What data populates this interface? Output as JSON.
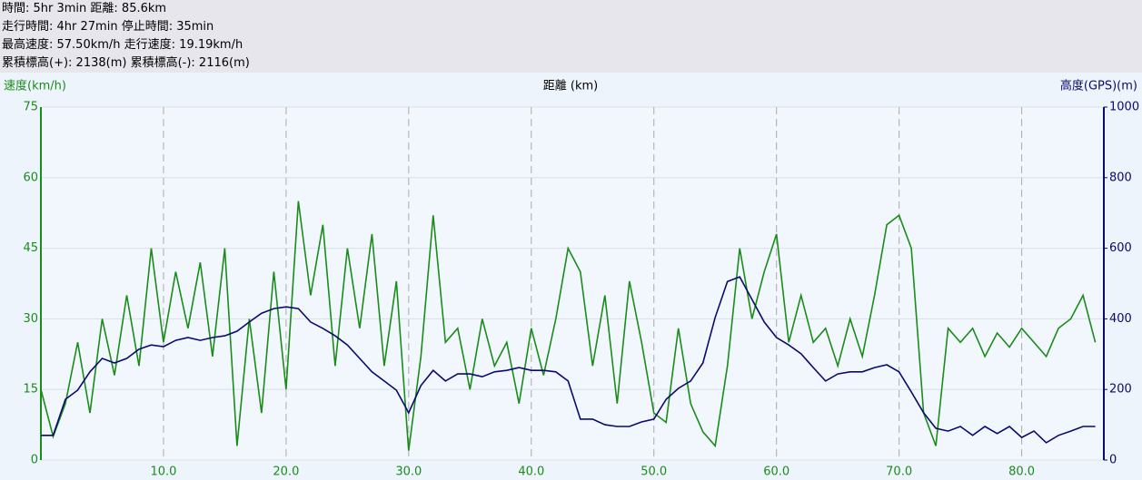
{
  "header": {
    "lines": [
      "時間: 5hr 3min 距離: 85.6km",
      "走行時間: 4hr 27min 停止時間: 35min",
      "最高速度: 57.50km/h 走行速度: 19.19km/h",
      "累積標高(+): 2138(m) 累積標高(-): 2116(m)"
    ]
  },
  "chart_data": {
    "type": "line",
    "x_label": "距離 (km)",
    "y_label": "速度(km/h)",
    "y2_label": "高度(GPS)(m)",
    "xlim": [
      0,
      86.7
    ],
    "xticks": [
      {
        "value": 10,
        "label": "10.0"
      },
      {
        "value": 20,
        "label": "20.0"
      },
      {
        "value": 30,
        "label": "30.0"
      },
      {
        "value": 40,
        "label": "40.0"
      },
      {
        "value": 50,
        "label": "50.0"
      },
      {
        "value": 60,
        "label": "60.0"
      },
      {
        "value": 70,
        "label": "70.0"
      },
      {
        "value": 80,
        "label": "80.0"
      }
    ],
    "ylim": [
      0,
      75
    ],
    "yticks": [
      0,
      15,
      30,
      45,
      60,
      75
    ],
    "y2lim": [
      0,
      1000
    ],
    "y2ticks": [
      0,
      200,
      400,
      600,
      800,
      1000
    ],
    "grid": true,
    "x": [
      0,
      1,
      2,
      3,
      4,
      5,
      6,
      7,
      8,
      9,
      10,
      11,
      12,
      13,
      14,
      15,
      16,
      17,
      18,
      19,
      20,
      21,
      22,
      23,
      24,
      25,
      26,
      27,
      28,
      29,
      30,
      31,
      32,
      33,
      34,
      35,
      36,
      37,
      38,
      39,
      40,
      41,
      42,
      43,
      44,
      45,
      46,
      47,
      48,
      49,
      50,
      51,
      52,
      53,
      54,
      55,
      56,
      57,
      58,
      59,
      60,
      61,
      62,
      63,
      64,
      65,
      66,
      67,
      68,
      69,
      70,
      71,
      72,
      73,
      74,
      75,
      76,
      77,
      78,
      79,
      80,
      81,
      82,
      83,
      84,
      85,
      86
    ],
    "series": [
      {
        "name": "速度",
        "color": "#1a8c1a",
        "values": [
          15,
          5,
          12,
          25,
          10,
          30,
          18,
          35,
          20,
          45,
          25,
          40,
          28,
          42,
          22,
          45,
          3,
          30,
          10,
          40,
          15,
          55,
          35,
          50,
          20,
          45,
          28,
          48,
          20,
          38,
          2,
          22,
          52,
          25,
          28,
          15,
          30,
          20,
          25,
          12,
          28,
          18,
          30,
          45,
          40,
          20,
          35,
          12,
          38,
          25,
          10,
          8,
          28,
          12,
          6,
          3,
          20,
          45,
          30,
          40,
          48,
          25,
          35,
          25,
          28,
          20,
          30,
          22,
          35,
          50,
          52,
          45,
          10,
          3,
          28,
          25,
          28,
          22,
          27,
          24,
          28,
          25,
          22,
          28,
          30,
          35,
          25
        ]
      },
      {
        "name": "高度",
        "color": "#0a0a6e",
        "axis": "y2",
        "values": [
          70,
          70,
          172,
          198,
          250,
          288,
          275,
          288,
          314,
          326,
          321,
          339,
          347,
          339,
          347,
          352,
          365,
          391,
          416,
          429,
          434,
          429,
          391,
          373,
          352,
          326,
          288,
          250,
          224,
          198,
          134,
          211,
          254,
          224,
          244,
          244,
          236,
          250,
          254,
          262,
          254,
          254,
          250,
          224,
          116,
          116,
          100,
          95,
          95,
          108,
          116,
          172,
          203,
          224,
          275,
          404,
          506,
          519,
          455,
          391,
          347,
          326,
          301,
          262,
          224,
          244,
          250,
          250,
          262,
          270,
          250,
          193,
          134,
          90,
          82,
          95,
          70,
          95,
          75,
          95,
          64,
          82,
          49,
          70,
          82,
          95,
          95
        ]
      }
    ]
  }
}
